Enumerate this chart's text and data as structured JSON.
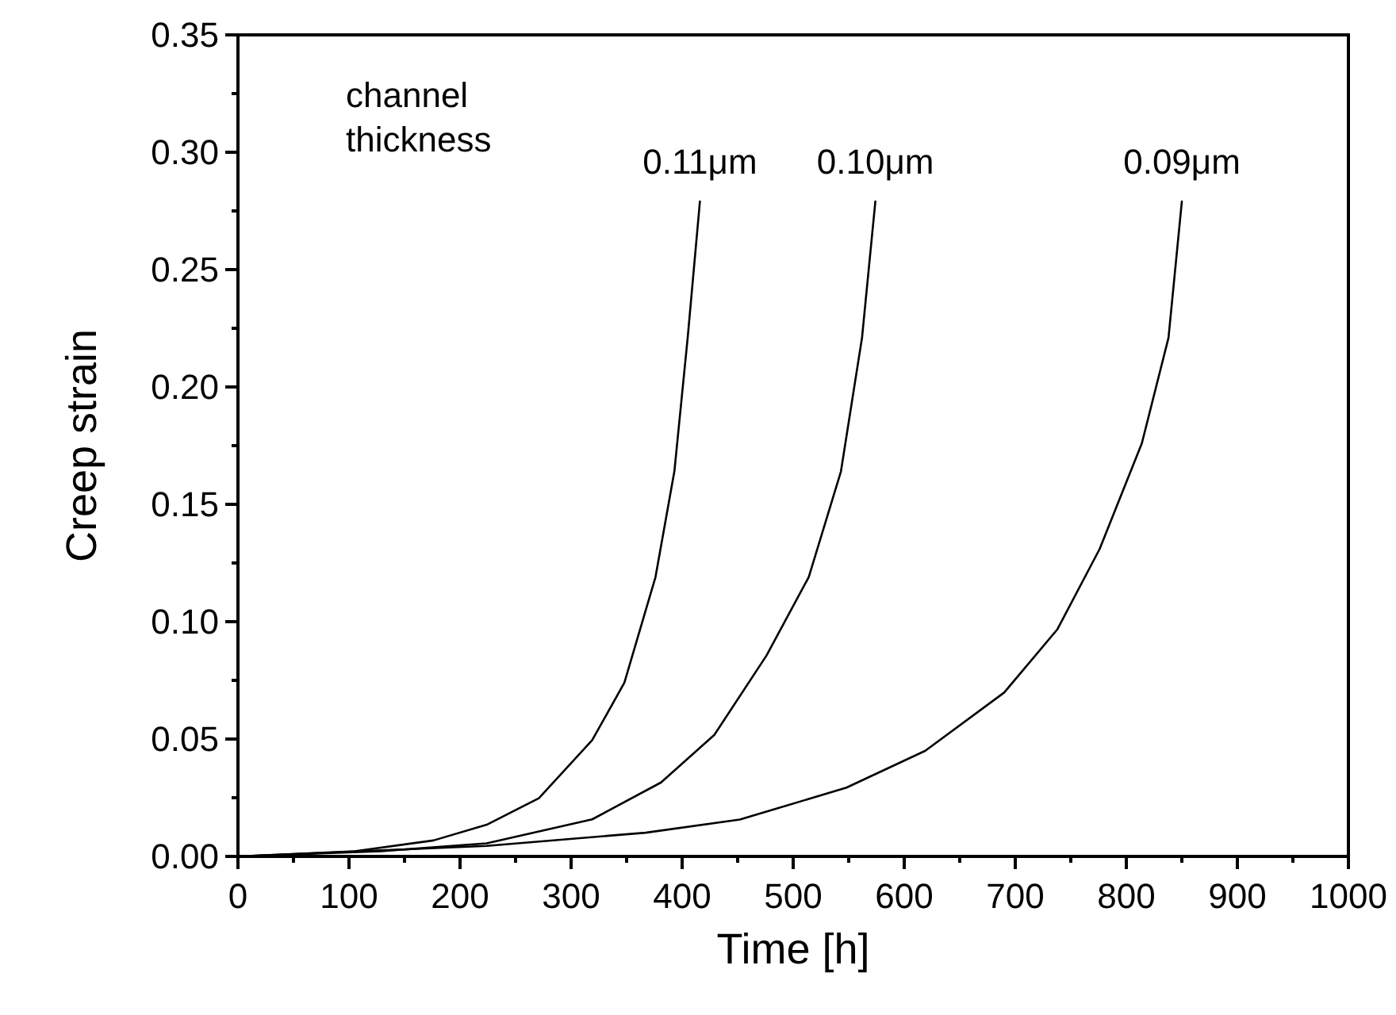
{
  "chart_data": {
    "type": "line",
    "xlabel": "Time [h]",
    "ylabel": "Creep strain",
    "annotations": [
      "channel thickness"
    ],
    "xlim": [
      0,
      1000
    ],
    "xticks": [
      0,
      100,
      200,
      300,
      400,
      500,
      600,
      700,
      800,
      900,
      1000
    ],
    "ylim": [
      0,
      0.35
    ],
    "yticks": [
      {
        "value": 0,
        "label": "0.00"
      },
      {
        "value": 0.05,
        "label": "0.05"
      },
      {
        "value": 0.1,
        "label": "0.10"
      },
      {
        "value": 0.15,
        "label": "0.15"
      },
      {
        "value": 0.2,
        "label": "0.20"
      },
      {
        "value": 0.25,
        "label": "0.25"
      },
      {
        "value": 0.3,
        "label": "0.30"
      },
      {
        "value": 0.35,
        "label": "0.35"
      }
    ],
    "grid": false,
    "legend": false,
    "marker": "none",
    "line_style": "solid",
    "series": [
      {
        "name": "0.11μm",
        "color": "#000000",
        "x": [
          0,
          105,
          176,
          224,
          271,
          319,
          348,
          376,
          393,
          405,
          416
        ],
        "values": [
          0,
          0.0022,
          0.0068,
          0.0135,
          0.0248,
          0.0495,
          0.074,
          0.119,
          0.164,
          0.221,
          0.279
        ]
      },
      {
        "name": "0.10μm",
        "color": "#000000",
        "x": [
          0,
          129,
          224,
          319,
          381,
          429,
          476,
          514,
          543,
          562,
          574
        ],
        "values": [
          0,
          0.0022,
          0.0056,
          0.0158,
          0.0315,
          0.0518,
          0.0856,
          0.119,
          0.164,
          0.221,
          0.279
        ]
      },
      {
        "name": "0.09μm",
        "color": "#000000",
        "x": [
          0,
          81,
          224,
          367,
          452,
          548,
          619,
          690,
          738,
          776,
          814,
          838,
          850
        ],
        "values": [
          0,
          0.0016,
          0.0045,
          0.0101,
          0.0157,
          0.0293,
          0.045,
          0.0698,
          0.0968,
          0.131,
          0.176,
          0.221,
          0.279
        ]
      }
    ]
  }
}
